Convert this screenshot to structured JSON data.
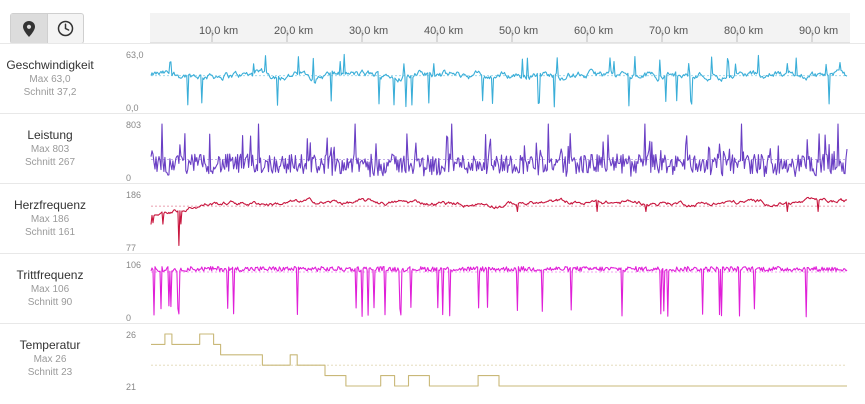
{
  "toolbar": {
    "map_icon": "map-pin-icon",
    "time_icon": "clock-icon",
    "active": "map"
  },
  "distance_axis": {
    "ticks": [
      "10,0 km",
      "20,0 km",
      "30,0 km",
      "40,0 km",
      "50,0 km",
      "60,0 km",
      "70,0 km",
      "80,0 km",
      "90,0 km"
    ]
  },
  "metrics": [
    {
      "id": "speed",
      "name": "Geschwindigkeit",
      "max_label": "Max 63,0",
      "avg_label": "Schnitt 37,2",
      "y_top_label": "63,0",
      "y_bottom_label": "0,0",
      "color": "#3aaed8",
      "max": 63.0,
      "min": 0.0,
      "avg": 37.2
    },
    {
      "id": "power",
      "name": "Leistung",
      "max_label": "Max 803",
      "avg_label": "Schnitt 267",
      "y_top_label": "803",
      "y_bottom_label": "0",
      "color": "#6a3fc4",
      "max": 803,
      "min": 0,
      "avg": 267
    },
    {
      "id": "heartrate",
      "name": "Herzfrequenz",
      "max_label": "Max 186",
      "avg_label": "Schnitt 161",
      "y_top_label": "186",
      "y_bottom_label": "77",
      "color": "#c8163e",
      "max": 186,
      "min": 77,
      "avg": 161
    },
    {
      "id": "cadence",
      "name": "Trittfrequenz",
      "max_label": "Max 106",
      "avg_label": "Schnitt 90",
      "y_top_label": "106",
      "y_bottom_label": "0",
      "color": "#e020d8",
      "max": 106,
      "min": 0,
      "avg": 90
    },
    {
      "id": "temperature",
      "name": "Temperatur",
      "max_label": "Max 26",
      "avg_label": "Schnitt 23",
      "y_top_label": "26",
      "y_bottom_label": "21",
      "color": "#c9b878",
      "max": 26,
      "min": 21,
      "avg": 23
    }
  ]
}
